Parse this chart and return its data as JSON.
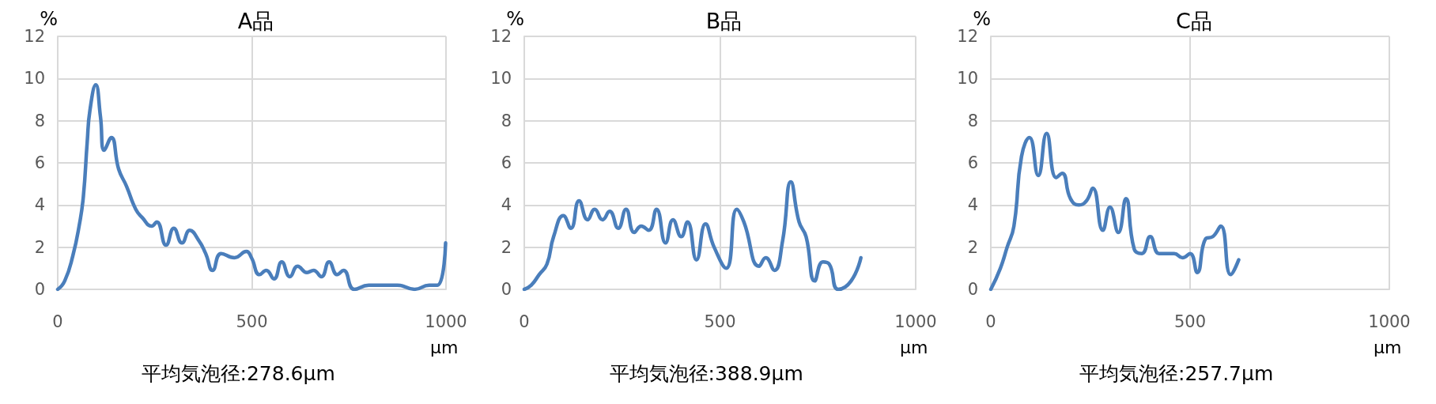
{
  "chart_data": [
    {
      "type": "line",
      "title": "A品",
      "xlabel": "μm",
      "ylabel": "%",
      "color": "#4a7ebb",
      "marker": "none",
      "grid": true,
      "x": [
        0,
        18,
        39,
        56,
        66,
        76,
        83,
        98,
        110,
        120,
        138,
        157,
        177,
        201,
        218,
        242,
        255,
        279,
        299,
        320,
        340,
        364,
        381,
        399,
        421,
        455,
        486,
        499,
        520,
        537,
        557,
        577,
        598,
        618,
        642,
        659,
        679,
        699,
        720,
        736,
        764,
        801,
        835,
        875,
        919,
        957,
        978,
        999
      ],
      "values": [
        0,
        0.4,
        1.6,
        3.1,
        4.4,
        7.0,
        8.5,
        9.7,
        8.2,
        6.6,
        7.2,
        5.7,
        4.9,
        3.8,
        3.4,
        3.0,
        3.2,
        2.1,
        2.9,
        2.2,
        2.8,
        2.3,
        1.7,
        0.9,
        1.7,
        1.5,
        1.8,
        1.5,
        0.7,
        0.9,
        0.5,
        1.3,
        0.6,
        1.1,
        0.8,
        0.9,
        0.6,
        1.3,
        0.7,
        0.9,
        0,
        0.2,
        0.2,
        0.2,
        0,
        0.2,
        0.2,
        2.2
      ],
      "xlim": [
        0,
        1000
      ],
      "ylim": [
        0,
        12
      ],
      "xticks": [
        0,
        500,
        1000
      ],
      "yticks": [
        0,
        2,
        4,
        6,
        8,
        10,
        12
      ],
      "annotations": [
        "平均気泡径:278.6μm"
      ]
    },
    {
      "type": "line",
      "title": "B品",
      "xlabel": "μm",
      "ylabel": "%",
      "color": "#4a7ebb",
      "marker": "none",
      "grid": true,
      "x": [
        0,
        18,
        38,
        58,
        75,
        100,
        119,
        140,
        162,
        180,
        200,
        218,
        240,
        260,
        281,
        299,
        318,
        338,
        361,
        380,
        401,
        417,
        440,
        463,
        485,
        516,
        543,
        561,
        600,
        617,
        639,
        660,
        681,
        702,
        720,
        742,
        763,
        779,
        802,
        835,
        860
      ],
      "values": [
        0,
        0.2,
        0.7,
        1.2,
        2.5,
        3.5,
        2.9,
        4.2,
        3.3,
        3.8,
        3.3,
        3.7,
        2.9,
        3.8,
        2.7,
        3.0,
        2.8,
        3.8,
        2.2,
        3.3,
        2.5,
        3.2,
        1.4,
        3.1,
        2.0,
        1.0,
        3.8,
        3.2,
        1.1,
        1.5,
        0.9,
        2.3,
        5.1,
        3.2,
        2.5,
        0.4,
        1.3,
        1.2,
        0,
        0.4,
        1.5
      ],
      "xlim": [
        0,
        1000
      ],
      "ylim": [
        0,
        12
      ],
      "xticks": [
        0,
        500,
        1000
      ],
      "yticks": [
        0,
        2,
        4,
        6,
        8,
        10,
        12
      ],
      "annotations": [
        "平均気泡径:388.9μm"
      ]
    },
    {
      "type": "line",
      "title": "C品",
      "xlabel": "μm",
      "ylabel": "%",
      "color": "#4a7ebb",
      "marker": "none",
      "grid": true,
      "x": [
        0,
        24,
        41,
        58,
        77,
        97,
        119,
        140,
        164,
        179,
        200,
        221,
        240,
        256,
        281,
        299,
        320,
        339,
        360,
        379,
        400,
        422,
        442,
        460,
        481,
        500,
        518,
        539,
        557,
        577,
        602,
        622
      ],
      "values": [
        0,
        1.0,
        2.0,
        3.0,
        6.3,
        7.2,
        5.4,
        7.4,
        5.3,
        5.5,
        4.3,
        4.0,
        4.2,
        4.8,
        2.8,
        3.9,
        2.7,
        4.3,
        1.9,
        1.7,
        2.5,
        1.7,
        1.7,
        1.7,
        1.5,
        1.7,
        0.8,
        2.4,
        2.5,
        3.0,
        0.7,
        1.4
      ],
      "xlim": [
        0,
        1000
      ],
      "ylim": [
        0,
        12
      ],
      "xticks": [
        0,
        500,
        1000
      ],
      "yticks": [
        0,
        2,
        4,
        6,
        8,
        10,
        12
      ],
      "annotations": [
        "平均気泡径:257.7μm"
      ]
    }
  ]
}
